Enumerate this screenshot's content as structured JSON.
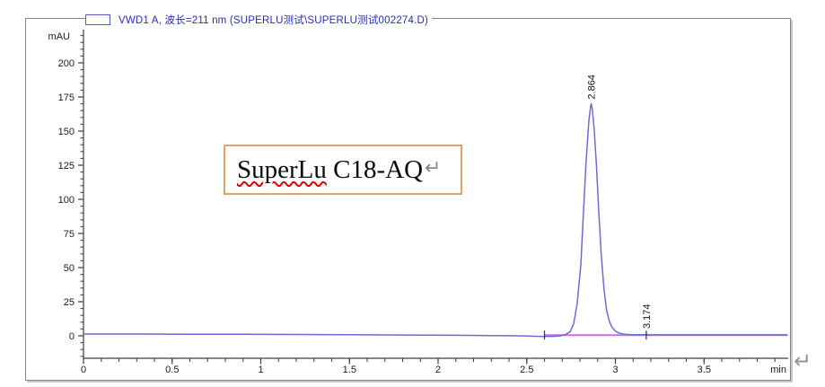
{
  "legend": {
    "text": "VWD1 A, 波长=211 nm (SUPERLU测试\\SUPERLU测试002274.D)",
    "series_color": "#6c6cd8",
    "text_color": "#2a2ac0"
  },
  "annotation_box": {
    "word": "SuperLu",
    "rest": " C18-AQ",
    "return_mark": "↵",
    "border_color": "#e2a269"
  },
  "marks": {
    "return_symbol": "↵"
  },
  "chart_data": {
    "type": "line",
    "title": "VWD1 A, 波长=211 nm (SUPERLU测试\\SUPERLU测试002274.D)",
    "xlabel": "min",
    "ylabel": "mAU",
    "xlim": [
      0,
      3.98
    ],
    "ylim": [
      -16,
      226
    ],
    "x_ticks": [
      0,
      0.5,
      1,
      1.5,
      2,
      2.5,
      3,
      3.5
    ],
    "x_minor_step": 0.1,
    "y_ticks": [
      0,
      25,
      50,
      75,
      100,
      125,
      150,
      175,
      200
    ],
    "y_minor_step": 5,
    "grid": false,
    "legend_position": "top-left",
    "colors": {
      "trace": "#6c6cd8",
      "integration_baseline": "#d76ae0",
      "axis": "#3d3d3d",
      "tick_label": "#1a1a1a",
      "peak_label": "#111111",
      "integration_mark": "#333333"
    },
    "series": [
      {
        "name": "VWD1 A",
        "color": "#6c6cd8",
        "points": [
          [
            0,
            1.3
          ],
          [
            0.3,
            1.3
          ],
          [
            0.6,
            1.2
          ],
          [
            0.9,
            1.1
          ],
          [
            1.2,
            1.0
          ],
          [
            1.5,
            0.8
          ],
          [
            1.8,
            0.6
          ],
          [
            2.1,
            0.4
          ],
          [
            2.3,
            0.2
          ],
          [
            2.45,
            0
          ],
          [
            2.55,
            -0.3
          ],
          [
            2.6,
            -0.5
          ],
          [
            2.65,
            -0.4
          ],
          [
            2.69,
            0
          ],
          [
            2.72,
            1.0
          ],
          [
            2.745,
            3
          ],
          [
            2.765,
            9
          ],
          [
            2.785,
            24
          ],
          [
            2.805,
            52
          ],
          [
            2.82,
            90
          ],
          [
            2.835,
            128
          ],
          [
            2.85,
            157
          ],
          [
            2.86,
            168
          ],
          [
            2.864,
            170
          ],
          [
            2.87,
            166
          ],
          [
            2.88,
            152
          ],
          [
            2.893,
            125
          ],
          [
            2.906,
            92
          ],
          [
            2.92,
            60
          ],
          [
            2.935,
            35
          ],
          [
            2.95,
            19
          ],
          [
            2.965,
            11
          ],
          [
            2.98,
            6.5
          ],
          [
            3.0,
            3.5
          ],
          [
            3.02,
            2.0
          ],
          [
            3.05,
            1.2
          ],
          [
            3.08,
            0.9
          ],
          [
            3.12,
            0.8
          ],
          [
            3.16,
            0.8
          ],
          [
            3.174,
            1.0
          ],
          [
            3.19,
            0.8
          ],
          [
            3.25,
            0.7
          ],
          [
            3.35,
            0.7
          ],
          [
            3.5,
            0.7
          ],
          [
            3.65,
            0.7
          ],
          [
            3.8,
            0.7
          ],
          [
            3.97,
            0.7
          ]
        ]
      },
      {
        "name": "integration-baseline",
        "color": "#d76ae0",
        "points": [
          [
            2.6,
            0.5
          ],
          [
            3.97,
            0.5
          ]
        ]
      }
    ],
    "peaks": [
      {
        "rt": 2.864,
        "label": "2.864",
        "height_mAU": 170
      },
      {
        "rt": 3.174,
        "label": "3.174",
        "height_mAU": 1
      }
    ],
    "integration_marks_min": [
      2.6,
      3.174
    ]
  }
}
